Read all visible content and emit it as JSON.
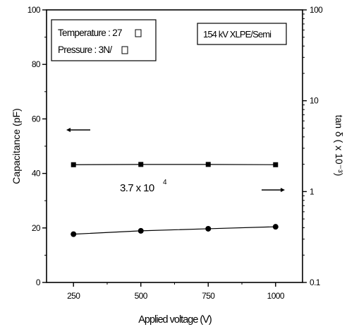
{
  "chart_data": {
    "type": "scatter",
    "xlabel": "Applied voltage (V)",
    "ylabel_left": "Capacitance (pF)",
    "ylabel_right": "tan δ ( x 10⁻³)",
    "xlim": [
      150,
      1100
    ],
    "ylim_left": [
      0,
      100
    ],
    "ylim_right": [
      0.1,
      100
    ],
    "right_scale": "log",
    "x_ticks": [
      "250",
      "500",
      "750",
      "1000"
    ],
    "left_ticks": [
      "0",
      "20",
      "40",
      "60",
      "80",
      "100"
    ],
    "right_ticks": [
      "0.1",
      "1",
      "10",
      "100"
    ],
    "series": [
      {
        "axis": "left",
        "marker": "square",
        "x": [
          250,
          500,
          750,
          1000
        ],
        "y": [
          43.2,
          43.3,
          43.3,
          43.2
        ]
      },
      {
        "axis": "right",
        "marker": "circle",
        "x": [
          250,
          500,
          750,
          1000
        ],
        "y": [
          0.34,
          0.37,
          0.39,
          0.41
        ]
      }
    ],
    "annotations": {
      "legend_line1": "Temperature : 27",
      "legend_line2": "Pressure : 3N/",
      "label_box": "154 kV XLPE/Semi",
      "value_base": "3.7 x 10",
      "value_exp": "4"
    }
  }
}
